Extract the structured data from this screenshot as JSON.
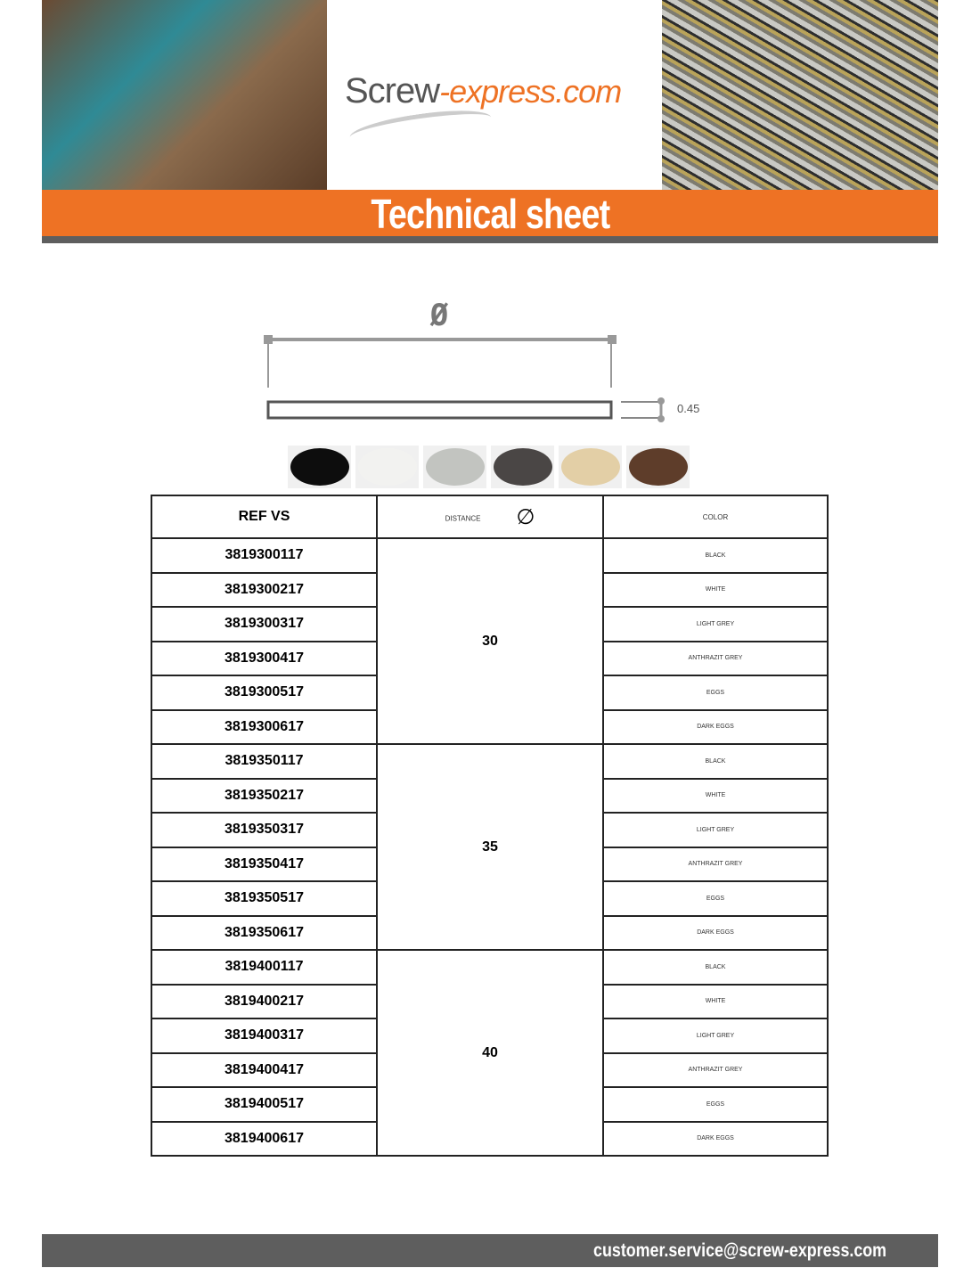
{
  "header": {
    "logo_part1": "Screw",
    "logo_part2": "-express.com",
    "title": "Technical sheet"
  },
  "diagram": {
    "diameter_symbol": "Ø",
    "thickness": "0.45"
  },
  "swatch_colors": [
    "#0d0d0d",
    "#f2f2f0",
    "#c2c4c0",
    "#4a4645",
    "#e3cfa6",
    "#5e3d2a"
  ],
  "table": {
    "headers": {
      "ref": "REF VS",
      "distance": "DISTANCE",
      "diameter_symbol": "∅",
      "color": "COLOR"
    },
    "groups": [
      {
        "distance": "30",
        "rows": [
          {
            "ref": "3819300117",
            "color": "BLACK"
          },
          {
            "ref": "3819300217",
            "color": "WHITE"
          },
          {
            "ref": "3819300317",
            "color": "LIGHT GREY"
          },
          {
            "ref": "3819300417",
            "color": "ANTHRAZIT GREY"
          },
          {
            "ref": "3819300517",
            "color": "EGGS"
          },
          {
            "ref": "3819300617",
            "color": "DARK EGGS"
          }
        ]
      },
      {
        "distance": "35",
        "rows": [
          {
            "ref": "3819350117",
            "color": "BLACK"
          },
          {
            "ref": "3819350217",
            "color": "WHITE"
          },
          {
            "ref": "3819350317",
            "color": "LIGHT GREY"
          },
          {
            "ref": "3819350417",
            "color": "ANTHRAZIT GREY"
          },
          {
            "ref": "3819350517",
            "color": "EGGS"
          },
          {
            "ref": "3819350617",
            "color": "DARK EGGS"
          }
        ]
      },
      {
        "distance": "40",
        "rows": [
          {
            "ref": "3819400117",
            "color": "BLACK"
          },
          {
            "ref": "3819400217",
            "color": "WHITE"
          },
          {
            "ref": "3819400317",
            "color": "LIGHT GREY"
          },
          {
            "ref": "3819400417",
            "color": "ANTHRAZIT GREY"
          },
          {
            "ref": "3819400517",
            "color": "EGGS"
          },
          {
            "ref": "3819400617",
            "color": "DARK EGGS"
          }
        ]
      }
    ]
  },
  "footer": {
    "email": "customer.service@screw-express.com"
  }
}
